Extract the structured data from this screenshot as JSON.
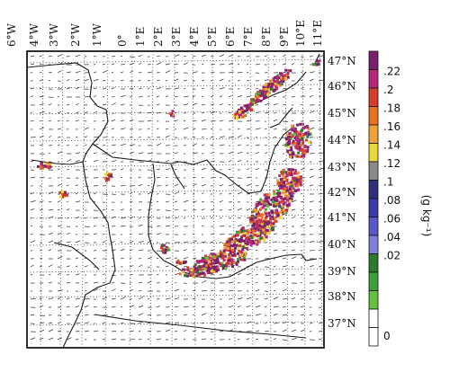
{
  "map": {
    "lon_labels": [
      "6°W",
      "4°W",
      "3°W",
      "2°W",
      "1°W",
      "0°",
      "1°E",
      "2°E",
      "3°E",
      "4°E",
      "5°E",
      "6°E",
      "7°E",
      "8°E",
      "9°E",
      "10°E",
      "11°E"
    ],
    "lat_labels": [
      "47°N",
      "46°N",
      "45°N",
      "44°N",
      "43°N",
      "42°N",
      "41°N",
      "40°N",
      "39°N",
      "38°N",
      "37°N"
    ]
  },
  "colorbar": {
    "unit_label": "(g kg⁻¹)",
    "ticks": [
      ".22",
      ".2",
      ".18",
      ".16",
      ".14",
      ".12",
      ".1",
      ".08",
      ".06",
      ".04",
      ".02",
      "0"
    ],
    "colors": [
      "#7a1f6e",
      "#b8287a",
      "#d63b2b",
      "#e8701e",
      "#f0a23a",
      "#e8d83a",
      "#8a8a8a",
      "#30307a",
      "#3a3aa8",
      "#5858c8",
      "#8080d8",
      "#2c7a2c",
      "#3aa03a",
      "#68c040",
      "#ffffff",
      "#ffffff"
    ]
  }
}
